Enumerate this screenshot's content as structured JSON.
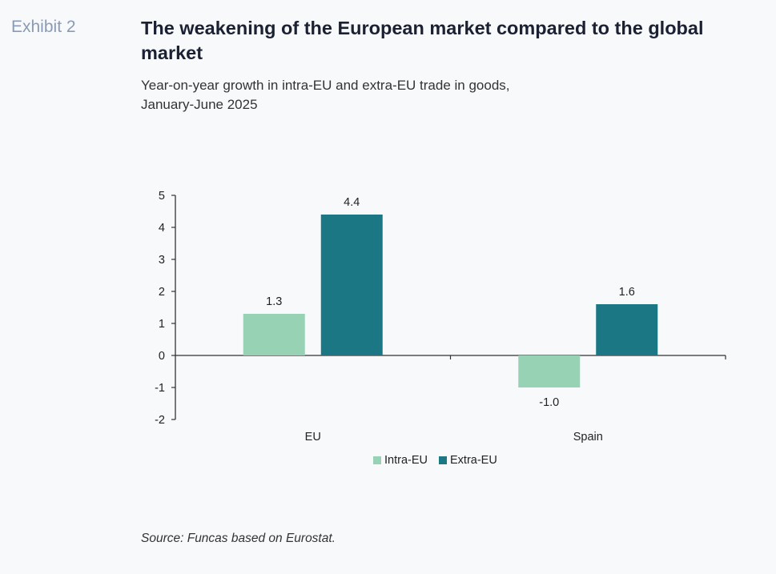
{
  "header": {
    "exhibit": "Exhibit 2",
    "title": "The weakening of the European market compared to the global market",
    "subtitle_line1": "Year-on-year growth in intra-EU and extra-EU trade in goods,",
    "subtitle_line2": "January-June 2025"
  },
  "source": "Source: Funcas based on Eurostat.",
  "colors": {
    "intra": "#97d2b5",
    "extra": "#1b7783",
    "axis": "#333333"
  },
  "chart_data": {
    "type": "bar",
    "title": "Year-on-year growth in intra-EU and extra-EU trade in goods, January-June 2025",
    "categories": [
      "EU",
      "Spain"
    ],
    "series": [
      {
        "name": "Intra-EU",
        "values": [
          1.3,
          -1.0
        ],
        "labels": [
          "1.3",
          "-1.0"
        ]
      },
      {
        "name": "Extra-EU",
        "values": [
          4.4,
          1.6
        ],
        "labels": [
          "4.4",
          "1.6"
        ]
      }
    ],
    "xlabel": "",
    "ylabel": "",
    "ylim": [
      -2,
      5
    ],
    "yticks": [
      "5",
      "4",
      "3",
      "2",
      "1",
      "0",
      "-1",
      "-2"
    ],
    "ytick_values": [
      5,
      4,
      3,
      2,
      1,
      0,
      -1,
      -2
    ],
    "grid": false,
    "legend": "bottom-center"
  }
}
